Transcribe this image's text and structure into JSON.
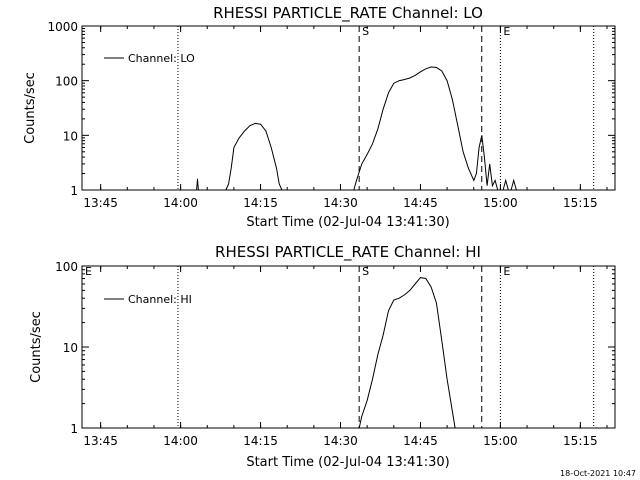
{
  "footer": {
    "timestamp": "18-Oct-2021 10:47"
  },
  "chart_data": [
    {
      "type": "line",
      "title": "RHESSI PARTICLE_RATE Channel: LO",
      "xlabel": "Start Time (02-Jul-04 13:41:30)",
      "ylabel": "Counts/sec",
      "yscale": "log",
      "xlim": [
        "13:41:30",
        "15:21:30"
      ],
      "ylim": [
        1,
        1000
      ],
      "x_ticks": [
        "13:45",
        "14:00",
        "14:15",
        "14:30",
        "14:45",
        "15:00",
        "15:15"
      ],
      "y_ticks": [
        "1",
        "10",
        "100",
        "1000"
      ],
      "legend": {
        "position": "top-left",
        "entries": [
          "Channel: LO"
        ]
      },
      "vertical_lines": [
        {
          "time": "13:59:30",
          "style": "dotted",
          "label": ""
        },
        {
          "time": "14:33:30",
          "style": "dashed",
          "label": "S"
        },
        {
          "time": "14:56:30",
          "style": "dashed",
          "label": ""
        },
        {
          "time": "15:00:00",
          "style": "dotted",
          "label": "E"
        },
        {
          "time": "15:17:30",
          "style": "dotted",
          "label": ""
        }
      ],
      "series": [
        {
          "name": "Channel: LO",
          "segments": [
            [
              [
                "14:03:00",
                1
              ],
              [
                "14:03:10",
                1.6
              ],
              [
                "14:03:20",
                1
              ]
            ],
            [
              [
                "14:08:30",
                1
              ],
              [
                "14:09:00",
                1.3
              ],
              [
                "14:09:30",
                2.5
              ],
              [
                "14:10:00",
                6
              ],
              [
                "14:11:00",
                9
              ],
              [
                "14:12:00",
                12
              ],
              [
                "14:13:00",
                15
              ],
              [
                "14:14:00",
                16.5
              ],
              [
                "14:15:00",
                16
              ],
              [
                "14:16:00",
                12
              ],
              [
                "14:17:00",
                6
              ],
              [
                "14:18:00",
                2.5
              ],
              [
                "14:18:30",
                1.3
              ],
              [
                "14:19:00",
                1
              ]
            ],
            [
              [
                "14:32:30",
                1
              ],
              [
                "14:33:00",
                1.5
              ],
              [
                "14:34:00",
                3
              ],
              [
                "14:35:00",
                4.5
              ],
              [
                "14:36:00",
                7
              ],
              [
                "14:37:00",
                13
              ],
              [
                "14:38:00",
                30
              ],
              [
                "14:39:00",
                60
              ],
              [
                "14:40:00",
                90
              ],
              [
                "14:41:00",
                100
              ],
              [
                "14:42:00",
                105
              ],
              [
                "14:43:00",
                112
              ],
              [
                "14:44:00",
                125
              ],
              [
                "14:45:00",
                145
              ],
              [
                "14:46:00",
                165
              ],
              [
                "14:47:00",
                178
              ],
              [
                "14:48:00",
                175
              ],
              [
                "14:49:00",
                150
              ],
              [
                "14:50:00",
                100
              ],
              [
                "14:51:00",
                45
              ],
              [
                "14:52:00",
                15
              ],
              [
                "14:53:00",
                5
              ],
              [
                "14:54:00",
                2.5
              ],
              [
                "14:55:00",
                1.5
              ],
              [
                "14:55:30",
                2
              ],
              [
                "14:56:00",
                6
              ],
              [
                "14:56:30",
                10
              ],
              [
                "14:57:00",
                4
              ],
              [
                "14:57:30",
                1.2
              ],
              [
                "14:58:00",
                3
              ],
              [
                "14:58:30",
                1.2
              ],
              [
                "14:59:00",
                1.5
              ],
              [
                "14:59:30",
                1
              ]
            ],
            [
              [
                "15:00:30",
                1
              ],
              [
                "15:01:00",
                1.5
              ],
              [
                "15:01:30",
                1
              ]
            ],
            [
              [
                "15:02:00",
                1
              ],
              [
                "15:02:30",
                1.5
              ],
              [
                "15:03:00",
                1
              ]
            ]
          ]
        }
      ]
    },
    {
      "type": "line",
      "title": "RHESSI PARTICLE_RATE Channel: HI",
      "xlabel": "Start Time (02-Jul-04 13:41:30)",
      "ylabel": "Counts/sec",
      "yscale": "log",
      "xlim": [
        "13:41:30",
        "15:21:30"
      ],
      "ylim": [
        1,
        100
      ],
      "x_ticks": [
        "13:45",
        "14:00",
        "14:15",
        "14:30",
        "14:45",
        "15:00",
        "15:15"
      ],
      "y_ticks": [
        "1",
        "10",
        "100"
      ],
      "legend": {
        "position": "top-left",
        "entries": [
          "Channel: HI"
        ]
      },
      "vertical_lines": [
        {
          "time": "13:41:30",
          "style": "none",
          "label": "E"
        },
        {
          "time": "13:59:30",
          "style": "dotted",
          "label": ""
        },
        {
          "time": "14:33:30",
          "style": "dashed",
          "label": "S"
        },
        {
          "time": "14:56:30",
          "style": "dashed",
          "label": ""
        },
        {
          "time": "15:00:00",
          "style": "dotted",
          "label": "E"
        },
        {
          "time": "15:17:30",
          "style": "dotted",
          "label": ""
        }
      ],
      "series": [
        {
          "name": "Channel: HI",
          "segments": [
            [
              [
                "14:33:30",
                1
              ],
              [
                "14:34:00",
                1.4
              ],
              [
                "14:35:00",
                2.2
              ],
              [
                "14:36:00",
                4
              ],
              [
                "14:37:00",
                8
              ],
              [
                "14:38:00",
                14
              ],
              [
                "14:39:00",
                28
              ],
              [
                "14:40:00",
                38
              ],
              [
                "14:41:00",
                40
              ],
              [
                "14:42:00",
                44
              ],
              [
                "14:43:00",
                50
              ],
              [
                "14:44:00",
                60
              ],
              [
                "14:45:00",
                72
              ],
              [
                "14:46:00",
                70
              ],
              [
                "14:47:00",
                55
              ],
              [
                "14:48:00",
                35
              ],
              [
                "14:49:00",
                12
              ],
              [
                "14:50:00",
                4
              ],
              [
                "14:51:00",
                1.6
              ],
              [
                "14:51:30",
                1
              ]
            ]
          ]
        }
      ]
    }
  ]
}
